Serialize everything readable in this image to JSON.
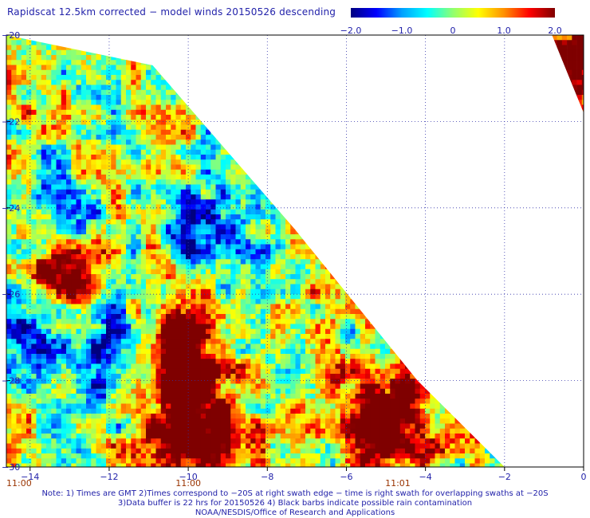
{
  "title": "Rapidscat 12.5km corrected − model winds 20150526 descending",
  "colorbar": {
    "ticks": [
      {
        "value": -2.0,
        "label": "−2.0"
      },
      {
        "value": -1.0,
        "label": "−1.0"
      },
      {
        "value": 0,
        "label": "0"
      },
      {
        "value": 1.0,
        "label": "1.0"
      },
      {
        "value": 2.0,
        "label": "2.0"
      }
    ],
    "min": -2.0,
    "max": 2.0,
    "colors": [
      "#00007f",
      "#0000ff",
      "#00a0ff",
      "#00ffff",
      "#90ff70",
      "#ffff00",
      "#ff9000",
      "#ff0000",
      "#7f0000"
    ]
  },
  "chart_data": {
    "type": "heatmap",
    "title": "Rapidscat 12.5km corrected − model winds 20150526 descending",
    "xlabel": "",
    "ylabel": "",
    "xlim": [
      -14.6,
      0
    ],
    "ylim": [
      -30,
      -20
    ],
    "x_ticks": [
      {
        "value": -14,
        "label": "−14"
      },
      {
        "value": -12,
        "label": "−12"
      },
      {
        "value": -10,
        "label": "−10"
      },
      {
        "value": -8,
        "label": "−8"
      },
      {
        "value": -6,
        "label": "−6"
      },
      {
        "value": -4,
        "label": "−4"
      },
      {
        "value": -2,
        "label": "−2"
      },
      {
        "value": 0,
        "label": "0"
      }
    ],
    "y_ticks": [
      {
        "value": -20,
        "label": "−20"
      },
      {
        "value": -22,
        "label": "−22"
      },
      {
        "value": -24,
        "label": "−24"
      },
      {
        "value": -26,
        "label": "−26"
      },
      {
        "value": -28,
        "label": "−28"
      },
      {
        "value": -30,
        "label": "−30"
      }
    ],
    "time_labels": [
      {
        "x": -14.6,
        "label": "11:00"
      },
      {
        "x": -10,
        "label": "11:00"
      },
      {
        "x": -4.7,
        "label": "11:01"
      }
    ],
    "grid": true,
    "swath_edge": [
      [
        -14.6,
        -20
      ],
      [
        -10.9,
        -20.7
      ],
      [
        -7.3,
        -24.5
      ],
      [
        -4.2,
        -28
      ],
      [
        -2.0,
        -30
      ]
    ],
    "colorbar_range": [
      -2.0,
      2.0
    ],
    "regions": [
      {
        "name": "main swath",
        "x": [
          -14.6,
          -2.0
        ],
        "y": [
          -30,
          -20
        ],
        "values_range": [
          -2.0,
          2.0
        ]
      },
      {
        "name": "northeast corner swath",
        "x": [
          -0.8,
          0
        ],
        "y": [
          -21.8,
          -20
        ],
        "values_range": [
          -0.5,
          2.0
        ]
      }
    ],
    "features": [
      {
        "label": "strong positive region",
        "x": -5.0,
        "y": -28.8,
        "value": 2.0
      },
      {
        "label": "strong positive region",
        "x": -10.2,
        "y": -27.2,
        "value": 2.0
      },
      {
        "label": "strong positive region",
        "x": -9.8,
        "y": -29.2,
        "value": 2.0
      },
      {
        "label": "strong positive region",
        "x": -13.3,
        "y": -25.6,
        "value": 2.0
      },
      {
        "label": "strong positive region",
        "x": -0.4,
        "y": -20.8,
        "value": 2.0
      },
      {
        "label": "negative region",
        "x": -14.0,
        "y": -26.7,
        "value": -1.6
      },
      {
        "label": "negative region",
        "x": -11.8,
        "y": -27.3,
        "value": -1.8
      },
      {
        "label": "negative region",
        "x": -9.4,
        "y": -24.6,
        "value": -1.4
      },
      {
        "label": "negative region",
        "x": -13.6,
        "y": -24.2,
        "value": -1.2
      }
    ]
  },
  "notes": [
    "Note: 1) Times are GMT 2)Times correspond to −20S at right swath edge − time is right swath for overlapping swaths at −20S",
    "3)Data buffer is 22 hrs for 20150526 4) Black barbs indicate possible rain contamination",
    "NOAA/NESDIS/Office of Research and Applications"
  ]
}
